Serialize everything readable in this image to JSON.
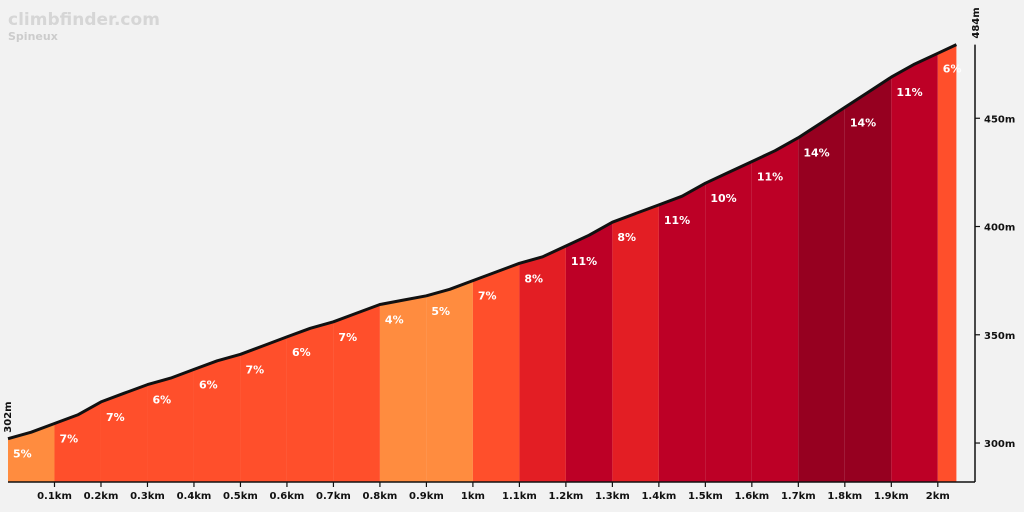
{
  "header": {
    "brand": "climbfinder.com",
    "climb_name": "Spineux"
  },
  "colors": {
    "background": "#f2f2f2",
    "profile_line": "#111111",
    "axis": "#111111",
    "label_text": "#ffffff",
    "gradient_scale": {
      "4": "#ff8c3f",
      "5": "#ff8c3f",
      "6": "#ff4f2b",
      "7": "#ff4f2b",
      "8": "#e31e24",
      "9": "#e31e24",
      "10": "#bd0026",
      "11": "#bd0026",
      "12": "#bd0026",
      "13": "#960020",
      "14": "#960020"
    }
  },
  "chart_data": {
    "type": "area",
    "xlabel": "",
    "ylabel": "",
    "xlim": [
      0,
      2.08
    ],
    "ylim": [
      282,
      500
    ],
    "grid": false,
    "x_ticks": [
      0.1,
      0.2,
      0.3,
      0.4,
      0.5,
      0.6,
      0.7,
      0.8,
      0.9,
      1.0,
      1.1,
      1.2,
      1.3,
      1.4,
      1.5,
      1.6,
      1.7,
      1.8,
      1.9,
      2.0
    ],
    "x_tick_labels": [
      "0.1km",
      "0.2km",
      "0.3km",
      "0.4km",
      "0.5km",
      "0.6km",
      "0.7km",
      "0.8km",
      "0.9km",
      "1km",
      "1.1km",
      "1.2km",
      "1.3km",
      "1.4km",
      "1.5km",
      "1.6km",
      "1.7km",
      "1.8km",
      "1.9km",
      "2km"
    ],
    "y_ticks": [
      300,
      350,
      400,
      450
    ],
    "y_tick_labels": [
      "300m",
      "350m",
      "400m",
      "450m"
    ],
    "start_label": "302m",
    "end_label": "484m",
    "profile": {
      "distance_km": [
        0,
        0.05,
        0.1,
        0.15,
        0.2,
        0.25,
        0.3,
        0.35,
        0.4,
        0.45,
        0.5,
        0.55,
        0.6,
        0.65,
        0.7,
        0.75,
        0.8,
        0.85,
        0.9,
        0.95,
        1.0,
        1.05,
        1.1,
        1.15,
        1.2,
        1.25,
        1.3,
        1.35,
        1.4,
        1.45,
        1.5,
        1.55,
        1.6,
        1.65,
        1.7,
        1.75,
        1.8,
        1.85,
        1.9,
        1.95,
        2.0,
        2.04
      ],
      "elevation_m": [
        302,
        305,
        309,
        313,
        319,
        323,
        327,
        330,
        334,
        338,
        341,
        345,
        349,
        353,
        356,
        360,
        364,
        366,
        368,
        371,
        375,
        379,
        383,
        386,
        391,
        396,
        402,
        406,
        410,
        414,
        420,
        425,
        430,
        435,
        441,
        448,
        455,
        462,
        469,
        475,
        480,
        484
      ]
    },
    "segments": [
      {
        "start_km": 0.0,
        "end_km": 0.1,
        "gradient_pct": 5,
        "label": "5%"
      },
      {
        "start_km": 0.1,
        "end_km": 0.2,
        "gradient_pct": 7,
        "label": "7%"
      },
      {
        "start_km": 0.2,
        "end_km": 0.3,
        "gradient_pct": 7,
        "label": "7%"
      },
      {
        "start_km": 0.3,
        "end_km": 0.4,
        "gradient_pct": 6,
        "label": "6%"
      },
      {
        "start_km": 0.4,
        "end_km": 0.5,
        "gradient_pct": 6,
        "label": "6%"
      },
      {
        "start_km": 0.5,
        "end_km": 0.6,
        "gradient_pct": 7,
        "label": "7%"
      },
      {
        "start_km": 0.6,
        "end_km": 0.7,
        "gradient_pct": 6,
        "label": "6%"
      },
      {
        "start_km": 0.7,
        "end_km": 0.8,
        "gradient_pct": 7,
        "label": "7%"
      },
      {
        "start_km": 0.8,
        "end_km": 0.9,
        "gradient_pct": 4,
        "label": "4%"
      },
      {
        "start_km": 0.9,
        "end_km": 1.0,
        "gradient_pct": 5,
        "label": "5%"
      },
      {
        "start_km": 1.0,
        "end_km": 1.1,
        "gradient_pct": 7,
        "label": "7%"
      },
      {
        "start_km": 1.1,
        "end_km": 1.2,
        "gradient_pct": 8,
        "label": "8%"
      },
      {
        "start_km": 1.2,
        "end_km": 1.3,
        "gradient_pct": 11,
        "label": "11%"
      },
      {
        "start_km": 1.3,
        "end_km": 1.4,
        "gradient_pct": 8,
        "label": "8%"
      },
      {
        "start_km": 1.4,
        "end_km": 1.5,
        "gradient_pct": 11,
        "label": "11%"
      },
      {
        "start_km": 1.5,
        "end_km": 1.6,
        "gradient_pct": 10,
        "label": "10%"
      },
      {
        "start_km": 1.6,
        "end_km": 1.7,
        "gradient_pct": 11,
        "label": "11%"
      },
      {
        "start_km": 1.7,
        "end_km": 1.8,
        "gradient_pct": 14,
        "label": "14%"
      },
      {
        "start_km": 1.8,
        "end_km": 1.9,
        "gradient_pct": 14,
        "label": "14%"
      },
      {
        "start_km": 1.9,
        "end_km": 2.0,
        "gradient_pct": 11,
        "label": "11%"
      },
      {
        "start_km": 2.0,
        "end_km": 2.08,
        "gradient_pct": 6,
        "label": "6%"
      }
    ]
  }
}
